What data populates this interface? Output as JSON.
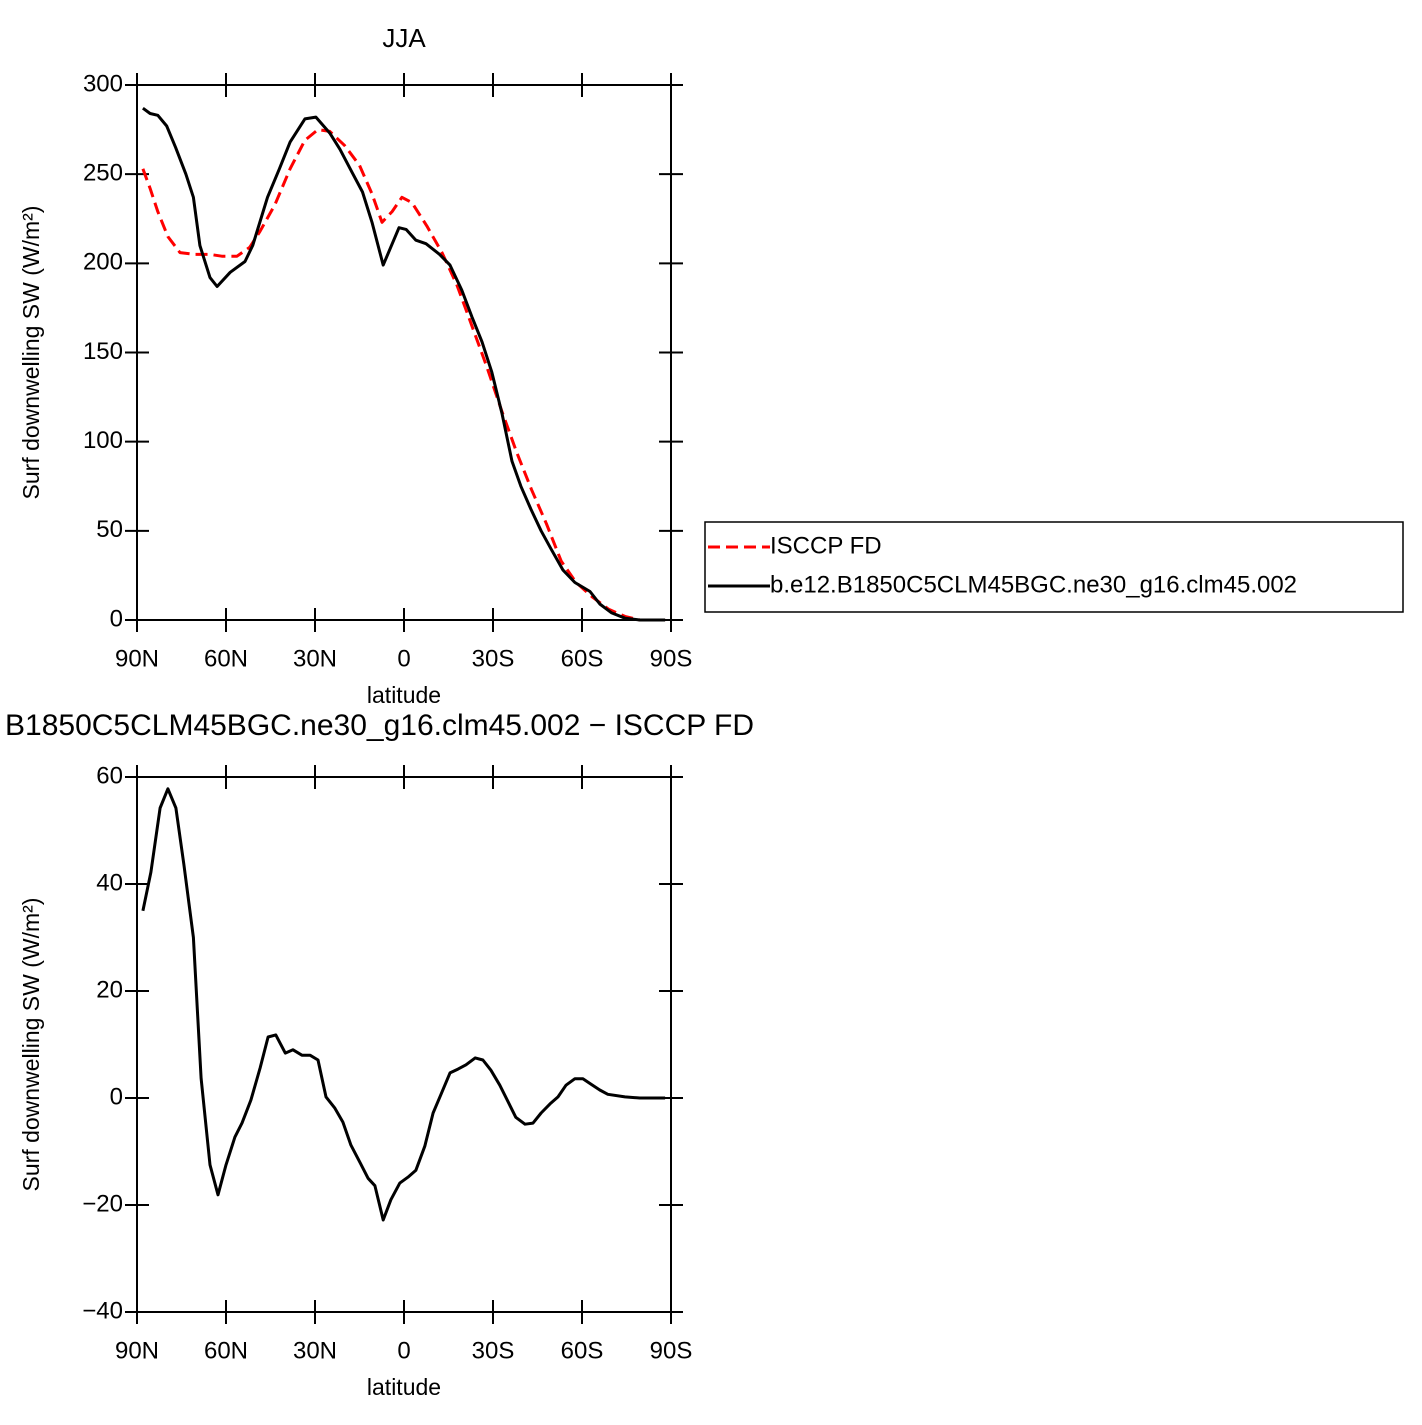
{
  "chart_data": [
    {
      "type": "line",
      "title": "JJA",
      "xlabel": "latitude",
      "ylabel": "Surf downwelling SW (W/m²)",
      "xlim": [
        90,
        -90
      ],
      "ylim": [
        0,
        300
      ],
      "xticks": [
        {
          "value": 90,
          "label": "90N"
        },
        {
          "value": 60,
          "label": "60N"
        },
        {
          "value": 30,
          "label": "30N"
        },
        0,
        {
          "value": -30,
          "label": "30S"
        },
        {
          "value": -60,
          "label": "60S"
        },
        {
          "value": -90,
          "label": "90S"
        }
      ],
      "yticks": [
        0,
        50,
        100,
        150,
        200,
        250,
        300
      ],
      "legend": "right",
      "series": [
        {
          "name": "ISCCP FD",
          "color": "#ff0000",
          "linestyle": "dashed",
          "x": [
            88,
            85.6,
            83,
            79.6,
            75.5,
            70.5,
            65.4,
            61.4,
            56.3,
            52,
            48.5,
            43.5,
            38.4,
            33.4,
            29,
            25,
            20,
            15,
            10.8,
            7.4,
            4,
            0.7,
            -2.7,
            -7.7,
            -12.8,
            -17.8,
            -22.9,
            -27.9,
            -33,
            -38,
            -43,
            -48,
            -53,
            -58,
            -63.4,
            -69,
            -74.5,
            -79.5,
            -88
          ],
          "values": [
            253,
            242,
            229,
            215,
            206,
            205,
            205,
            204,
            204,
            209,
            218,
            233,
            253,
            269,
            275,
            274,
            266,
            255,
            239,
            223,
            229,
            237,
            234,
            221,
            206,
            188,
            165,
            142,
            117,
            94,
            73,
            54,
            33,
            21,
            13,
            6,
            2,
            0,
            0
          ]
        },
        {
          "name": "b.e12.B1850C5CLM45BGC.ne30_g16.clm45.002",
          "color": "#000000",
          "linestyle": "solid",
          "x": [
            88,
            85.6,
            83,
            80,
            77,
            73.5,
            71,
            68.8,
            65.4,
            63,
            58.6,
            53.6,
            51,
            46,
            42,
            38.4,
            33.4,
            29.7,
            25,
            21.6,
            17.5,
            14,
            10.8,
            7,
            1.7,
            -0.7,
            -4,
            -7.4,
            -12,
            -15.5,
            -19.5,
            -22.9,
            -26.3,
            -29.6,
            -33,
            -36.4,
            -39.4,
            -42.8,
            -46.2,
            -49.5,
            -53.6,
            -57.6,
            -62.7,
            -66,
            -70,
            -74.5,
            -79.5,
            -83,
            -88
          ],
          "values": [
            287,
            284,
            283,
            277,
            265,
            250,
            237,
            210,
            192,
            187,
            195,
            201,
            210,
            237,
            253,
            268,
            281,
            282,
            273,
            264,
            251,
            240,
            223,
            199,
            220,
            219,
            213,
            211,
            205,
            199,
            185,
            170,
            156,
            139,
            116,
            89,
            75,
            62,
            50,
            40,
            28,
            21,
            16,
            9,
            4,
            1,
            0,
            0,
            0
          ]
        }
      ]
    },
    {
      "type": "line",
      "title": "B1850C5CLM45BGC.ne30_g16.clm45.002 − ISCCP FD",
      "xlabel": "latitude",
      "ylabel": "Surf downwelling SW (W/m²)",
      "xlim": [
        90,
        -90
      ],
      "ylim": [
        -40,
        60
      ],
      "xticks": [
        {
          "value": 90,
          "label": "90N"
        },
        {
          "value": 60,
          "label": "60N"
        },
        {
          "value": 30,
          "label": "30N"
        },
        0,
        {
          "value": -30,
          "label": "30S"
        },
        {
          "value": -60,
          "label": "60S"
        },
        {
          "value": -90,
          "label": "90S"
        }
      ],
      "yticks": [
        {
          "value": -40,
          "label": "−40"
        },
        {
          "value": -20,
          "label": "−20"
        },
        0,
        20,
        40,
        60
      ],
      "color": "#000000",
      "x": [
        88,
        85.3,
        82.2,
        79.6,
        76.9,
        74.2,
        71,
        68.4,
        65.4,
        62.7,
        60,
        57,
        54.6,
        51.6,
        48.5,
        45.8,
        43.2,
        40,
        37.4,
        34.4,
        31.7,
        29,
        26.3,
        23.3,
        20.6,
        17.9,
        14.8,
        12.1,
        9.8,
        7,
        4.4,
        1.4,
        -1.3,
        -4,
        -7,
        -9.8,
        -12.4,
        -15.5,
        -18.2,
        -20.9,
        -24,
        -26.6,
        -29.3,
        -32.3,
        -35,
        -37.7,
        -40.8,
        -43.5,
        -46.2,
        -49.2,
        -51.9,
        -54.6,
        -57.6,
        -60.3,
        -63,
        -66,
        -68.7,
        -74.5,
        -79.5,
        -88
      ],
      "values": [
        35,
        42.2,
        54.2,
        57.8,
        54.2,
        43.6,
        30,
        3.7,
        -12.5,
        -18.1,
        -12.5,
        -7.3,
        -4.7,
        -0.4,
        5.6,
        11.4,
        11.8,
        8.4,
        9,
        8,
        8,
        7.1,
        0.2,
        -1.9,
        -4.5,
        -8.8,
        -12.1,
        -15,
        -16.4,
        -22.8,
        -19,
        -15.9,
        -14.8,
        -13.5,
        -9,
        -2.8,
        0.6,
        4.7,
        5.4,
        6.2,
        7.5,
        7.1,
        5.2,
        2.4,
        -0.6,
        -3.6,
        -4.9,
        -4.7,
        -2.8,
        -1.1,
        0.2,
        2.4,
        3.6,
        3.6,
        2.6,
        1.5,
        0.7,
        0.2,
        0,
        0
      ]
    }
  ]
}
